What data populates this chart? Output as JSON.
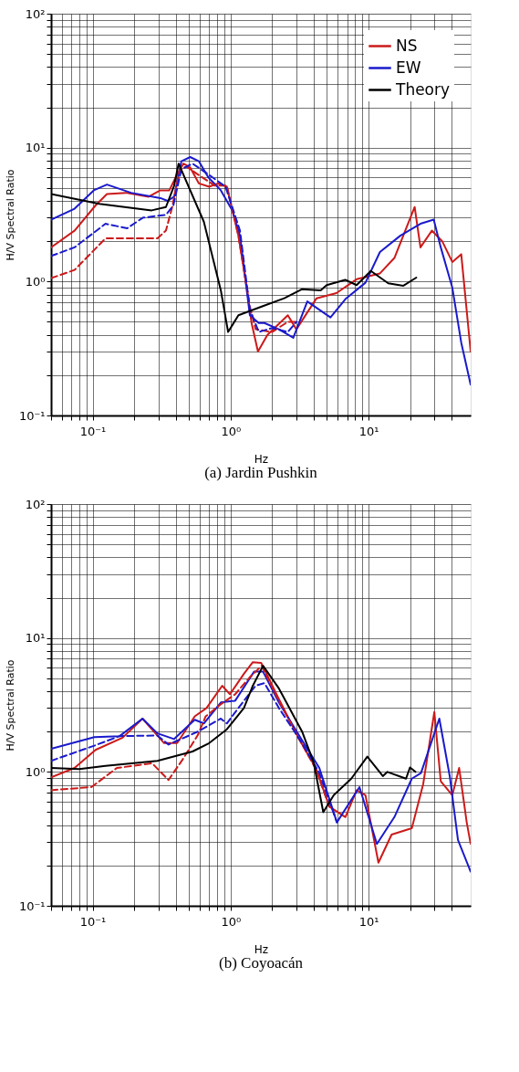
{
  "chart_data": [
    {
      "type": "line",
      "title": "(a) Jardin Pushkin",
      "xlabel": "Hz",
      "ylabel": "H/V Spectral Ratio",
      "log": "xy",
      "grid": true,
      "legend": "top right",
      "xlim": [
        0.05,
        55
      ],
      "ylim": [
        0.1,
        100
      ],
      "xticks": [
        {
          "value": 0.05,
          "label": null
        },
        {
          "value": 0.06,
          "label": null
        },
        {
          "value": 0.07,
          "label": null
        },
        {
          "value": 0.08,
          "label": null
        },
        {
          "value": 0.09,
          "label": null
        },
        {
          "value": 0.1,
          "label": "10⁻¹"
        },
        {
          "value": 0.2,
          "label": null
        },
        {
          "value": 0.3,
          "label": null
        },
        {
          "value": 0.4,
          "label": null
        },
        {
          "value": 0.5,
          "label": null
        },
        {
          "value": 0.6,
          "label": null
        },
        {
          "value": 0.7,
          "label": null
        },
        {
          "value": 0.8,
          "label": null
        },
        {
          "value": 0.9,
          "label": null
        },
        {
          "value": 1,
          "label": "10⁰"
        },
        {
          "value": 2,
          "label": null
        },
        {
          "value": 3,
          "label": null
        },
        {
          "value": 4,
          "label": null
        },
        {
          "value": 5,
          "label": null
        },
        {
          "value": 6,
          "label": null
        },
        {
          "value": 7,
          "label": null
        },
        {
          "value": 8,
          "label": null
        },
        {
          "value": 9,
          "label": null
        },
        {
          "value": 10,
          "label": "10¹"
        },
        {
          "value": 20,
          "label": null
        },
        {
          "value": 30,
          "label": null
        },
        {
          "value": 40,
          "label": null
        }
      ],
      "yticks": [
        {
          "value": 0.1,
          "label": "10⁻¹"
        },
        {
          "value": 0.2,
          "label": null
        },
        {
          "value": 0.3,
          "label": null
        },
        {
          "value": 0.4,
          "label": null
        },
        {
          "value": 0.5,
          "label": null
        },
        {
          "value": 0.6,
          "label": null
        },
        {
          "value": 0.7,
          "label": null
        },
        {
          "value": 0.8,
          "label": null
        },
        {
          "value": 0.9,
          "label": null
        },
        {
          "value": 1,
          "label": "10⁰"
        },
        {
          "value": 2,
          "label": null
        },
        {
          "value": 3,
          "label": null
        },
        {
          "value": 4,
          "label": null
        },
        {
          "value": 5,
          "label": null
        },
        {
          "value": 6,
          "label": null
        },
        {
          "value": 7,
          "label": null
        },
        {
          "value": 8,
          "label": null
        },
        {
          "value": 9,
          "label": null
        },
        {
          "value": 10,
          "label": "10¹"
        },
        {
          "value": 20,
          "label": null
        },
        {
          "value": 30,
          "label": null
        },
        {
          "value": 40,
          "label": null
        },
        {
          "value": 50,
          "label": null
        },
        {
          "value": 60,
          "label": null
        },
        {
          "value": 70,
          "label": null
        },
        {
          "value": 80,
          "label": null
        },
        {
          "value": 90,
          "label": null
        },
        {
          "value": 100,
          "label": "10²"
        }
      ],
      "series": [
        {
          "name": "NS",
          "color": "#cc1a1a",
          "line_style": "solid",
          "x": [
            0.05,
            0.074,
            0.105,
            0.127,
            0.174,
            0.255,
            0.31,
            0.36,
            0.4,
            0.455,
            0.51,
            0.59,
            0.7,
            0.81,
            0.94,
            1.14,
            1.32,
            1.42,
            1.58,
            1.85,
            2.6,
            3.0,
            4.2,
            5.85,
            8.2,
            12.1,
            15.4,
            21.6,
            23.8,
            28.8,
            34.2,
            40.5,
            47,
            55
          ],
          "values": [
            1.8,
            2.4,
            3.7,
            4.5,
            4.6,
            4.3,
            4.8,
            4.8,
            6.0,
            7.6,
            7.1,
            5.4,
            5.1,
            5.4,
            5.1,
            2.2,
            0.86,
            0.49,
            0.3,
            0.4,
            0.56,
            0.44,
            0.75,
            0.82,
            1.04,
            1.15,
            1.5,
            3.6,
            1.8,
            2.4,
            2.0,
            1.4,
            1.6,
            0.3
          ]
        },
        {
          "name": "EW",
          "color": "#1a1acc",
          "line_style": "solid",
          "x": [
            0.05,
            0.074,
            0.102,
            0.127,
            0.19,
            0.31,
            0.35,
            0.39,
            0.44,
            0.51,
            0.59,
            0.69,
            0.85,
            1.03,
            1.17,
            1.38,
            1.6,
            1.76,
            2.24,
            2.85,
            3.6,
            5.3,
            6.8,
            9.5,
            12.1,
            17,
            23.8,
            29.7,
            33.4,
            40.5,
            47,
            55
          ],
          "values": [
            2.9,
            3.5,
            4.8,
            5.3,
            4.6,
            4.2,
            4.0,
            4.3,
            7.9,
            8.5,
            7.9,
            6.0,
            4.8,
            3.4,
            2.2,
            0.56,
            0.49,
            0.49,
            0.44,
            0.38,
            0.71,
            0.54,
            0.74,
            0.98,
            1.66,
            2.2,
            2.7,
            2.9,
            1.8,
            0.9,
            0.35,
            0.17
          ]
        },
        {
          "color": "#cc1a1a",
          "line_style": "dashed",
          "x": [
            0.05,
            0.074,
            0.124,
            0.2,
            0.295,
            0.34,
            0.375,
            0.43,
            0.48,
            0.58,
            0.77,
            0.94,
            1.14,
            1.38,
            1.52,
            2.0,
            2.6,
            3.0
          ],
          "values": [
            1.06,
            1.22,
            2.1,
            2.1,
            2.1,
            2.4,
            3.5,
            6.9,
            7.2,
            6.3,
            5.2,
            5.2,
            2.2,
            0.65,
            0.44,
            0.42,
            0.5,
            0.5
          ]
        },
        {
          "color": "#1a1acc",
          "line_style": "dashed",
          "x": [
            0.05,
            0.074,
            0.124,
            0.178,
            0.232,
            0.34,
            0.385,
            0.44,
            0.53,
            0.74,
            0.92,
            1.17,
            1.38,
            1.6,
            2.0,
            2.6,
            3.0
          ],
          "values": [
            1.55,
            1.8,
            2.7,
            2.5,
            3.0,
            3.15,
            3.7,
            6.9,
            7.6,
            6.0,
            5.1,
            2.4,
            0.62,
            0.42,
            0.45,
            0.42,
            0.5
          ]
        },
        {
          "name": "Theory",
          "color": "#000000",
          "line_style": "solid",
          "x": [
            0.05,
            0.112,
            0.268,
            0.34,
            0.39,
            0.42,
            0.64,
            0.85,
            0.96,
            1.14,
            1.68,
            2.45,
            3.28,
            4.5,
            4.97,
            6.78,
            8.2,
            10.4,
            13.9,
            17.9,
            22.2
          ],
          "values": [
            4.5,
            3.8,
            3.4,
            3.6,
            5.2,
            7.6,
            2.8,
            0.86,
            0.42,
            0.56,
            0.65,
            0.75,
            0.875,
            0.86,
            0.94,
            1.03,
            0.94,
            1.2,
            0.97,
            0.93,
            1.07
          ]
        }
      ]
    },
    {
      "type": "line",
      "title": "(b) Coyoacán",
      "xlabel": "Hz",
      "ylabel": "H/V Spectral Ratio",
      "log": "xy",
      "grid": true,
      "xlim": [
        0.05,
        55
      ],
      "ylim": [
        0.1,
        100
      ],
      "xticks": [
        {
          "value": 0.05,
          "label": null
        },
        {
          "value": 0.06,
          "label": null
        },
        {
          "value": 0.07,
          "label": null
        },
        {
          "value": 0.08,
          "label": null
        },
        {
          "value": 0.09,
          "label": null
        },
        {
          "value": 0.1,
          "label": "10⁻¹"
        },
        {
          "value": 0.2,
          "label": null
        },
        {
          "value": 0.3,
          "label": null
        },
        {
          "value": 0.4,
          "label": null
        },
        {
          "value": 0.5,
          "label": null
        },
        {
          "value": 0.6,
          "label": null
        },
        {
          "value": 0.7,
          "label": null
        },
        {
          "value": 0.8,
          "label": null
        },
        {
          "value": 0.9,
          "label": null
        },
        {
          "value": 1,
          "label": "10⁰"
        },
        {
          "value": 2,
          "label": null
        },
        {
          "value": 3,
          "label": null
        },
        {
          "value": 4,
          "label": null
        },
        {
          "value": 5,
          "label": null
        },
        {
          "value": 6,
          "label": null
        },
        {
          "value": 7,
          "label": null
        },
        {
          "value": 8,
          "label": null
        },
        {
          "value": 9,
          "label": null
        },
        {
          "value": 10,
          "label": "10¹"
        },
        {
          "value": 20,
          "label": null
        },
        {
          "value": 30,
          "label": null
        },
        {
          "value": 40,
          "label": null
        }
      ],
      "yticks": [
        {
          "value": 0.1,
          "label": "10⁻¹"
        },
        {
          "value": 0.2,
          "label": null
        },
        {
          "value": 0.3,
          "label": null
        },
        {
          "value": 0.4,
          "label": null
        },
        {
          "value": 0.5,
          "label": null
        },
        {
          "value": 0.6,
          "label": null
        },
        {
          "value": 0.7,
          "label": null
        },
        {
          "value": 0.8,
          "label": null
        },
        {
          "value": 0.9,
          "label": null
        },
        {
          "value": 1,
          "label": "10⁰"
        },
        {
          "value": 2,
          "label": null
        },
        {
          "value": 3,
          "label": null
        },
        {
          "value": 4,
          "label": null
        },
        {
          "value": 5,
          "label": null
        },
        {
          "value": 6,
          "label": null
        },
        {
          "value": 7,
          "label": null
        },
        {
          "value": 8,
          "label": null
        },
        {
          "value": 9,
          "label": null
        },
        {
          "value": 10,
          "label": "10¹"
        },
        {
          "value": 20,
          "label": null
        },
        {
          "value": 30,
          "label": null
        },
        {
          "value": 40,
          "label": null
        },
        {
          "value": 50,
          "label": null
        },
        {
          "value": 60,
          "label": null
        },
        {
          "value": 70,
          "label": null
        },
        {
          "value": 80,
          "label": null
        },
        {
          "value": 90,
          "label": null
        },
        {
          "value": 100,
          "label": "10²"
        }
      ],
      "series": [
        {
          "color": "#cc1a1a",
          "line_style": "solid",
          "x": [
            0.05,
            0.074,
            0.105,
            0.165,
            0.23,
            0.33,
            0.41,
            0.55,
            0.67,
            0.87,
            0.99,
            1.25,
            1.45,
            1.67,
            2.24,
            3.1,
            4.15,
            5.2,
            6.8,
            8.2,
            9.5,
            11.8,
            14.7,
            20.6,
            24.9,
            30,
            33.4,
            40.5,
            45.4,
            51.5,
            55
          ],
          "values": [
            0.91,
            1.07,
            1.46,
            1.8,
            2.5,
            1.64,
            1.64,
            2.6,
            3.0,
            4.4,
            3.8,
            5.4,
            6.6,
            6.5,
            3.5,
            1.8,
            1.07,
            0.55,
            0.46,
            0.73,
            0.67,
            0.21,
            0.34,
            0.38,
            0.81,
            2.8,
            0.85,
            0.67,
            1.07,
            0.42,
            0.29
          ]
        },
        {
          "color": "#1a1acc",
          "line_style": "solid",
          "x": [
            0.05,
            0.103,
            0.157,
            0.23,
            0.295,
            0.39,
            0.55,
            0.64,
            0.85,
            1.08,
            1.48,
            1.72,
            2.24,
            3.3,
            4.4,
            5.9,
            8.6,
            11.5,
            15.4,
            20.6,
            24,
            32.6,
            38.8,
            44.5,
            55
          ],
          "values": [
            1.49,
            1.82,
            1.85,
            2.5,
            1.94,
            1.76,
            2.45,
            2.3,
            3.3,
            3.4,
            5.6,
            5.6,
            3.3,
            1.72,
            1.07,
            0.42,
            0.77,
            0.29,
            0.46,
            0.89,
            0.98,
            2.5,
            0.93,
            0.31,
            0.18
          ]
        },
        {
          "color": "#cc1a1a",
          "line_style": "dashed",
          "x": [
            0.05,
            0.098,
            0.15,
            0.27,
            0.355,
            0.45,
            0.58,
            0.66,
            0.85,
            1.08,
            1.38,
            1.68,
            2.24,
            3.1,
            4.15,
            5.2
          ],
          "values": [
            0.73,
            0.77,
            1.07,
            1.16,
            0.87,
            1.24,
            1.89,
            2.6,
            3.2,
            3.8,
            5.1,
            6.2,
            3.4,
            1.8,
            1.05,
            0.55
          ]
        },
        {
          "color": "#1a1acc",
          "line_style": "dashed",
          "x": [
            0.05,
            0.103,
            0.157,
            0.295,
            0.355,
            0.58,
            0.85,
            0.94,
            1.14,
            1.52,
            1.76,
            2.24,
            3.3,
            4.4,
            5.9
          ],
          "values": [
            1.21,
            1.57,
            1.85,
            1.87,
            1.6,
            2.0,
            2.5,
            2.3,
            3.0,
            4.4,
            4.6,
            3.0,
            1.64,
            0.98,
            0.42
          ]
        },
        {
          "color": "#000000",
          "line_style": "solid",
          "x": [
            0.05,
            0.08,
            0.124,
            0.295,
            0.53,
            0.7,
            0.94,
            1.25,
            1.45,
            1.72,
            2.24,
            3.3,
            4.0,
            4.7,
            5.6,
            7.5,
            9.8,
            12.7,
            13.7,
            18.7,
            20,
            21.9
          ],
          "values": [
            1.07,
            1.05,
            1.11,
            1.21,
            1.42,
            1.64,
            2.08,
            3.0,
            4.4,
            6.2,
            4.2,
            2.0,
            1.18,
            0.5,
            0.67,
            0.89,
            1.3,
            0.93,
            1.0,
            0.89,
            1.08,
            1.0
          ]
        }
      ]
    }
  ]
}
